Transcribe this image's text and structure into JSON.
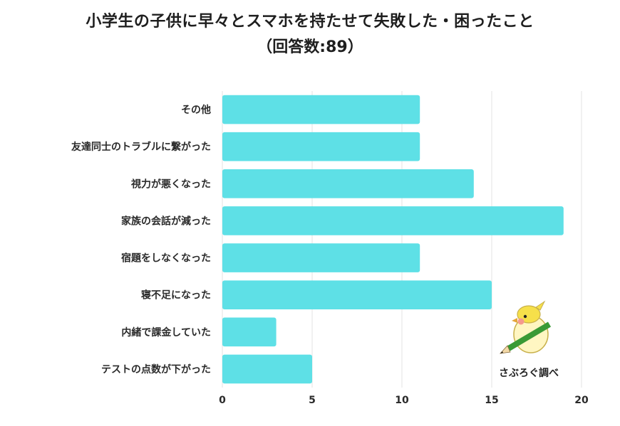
{
  "title_line1": "小学生の子供に早々とスマホを持たせて失敗した・困ったこと",
  "title_line2": "（回答数:89）",
  "watermark": "さぶろぐ調べ",
  "colors": {
    "bar": "#5ee0e6",
    "grid": "#e3e3e3",
    "text": "#2a2a2a"
  },
  "chart_data": {
    "type": "bar",
    "orientation": "horizontal",
    "categories": [
      "その他",
      "友達同士のトラブルに繋がった",
      "視力が悪くなった",
      "家族の会話が減った",
      "宿題をしなくなった",
      "寝不足になった",
      "内緒で課金していた",
      "テストの点数が下がった"
    ],
    "values": [
      11,
      11,
      14,
      19,
      11,
      15,
      3,
      5
    ],
    "xlim": [
      0,
      20
    ],
    "xticks": [
      0,
      5,
      10,
      15,
      20
    ],
    "grid": true,
    "legend": "none"
  }
}
